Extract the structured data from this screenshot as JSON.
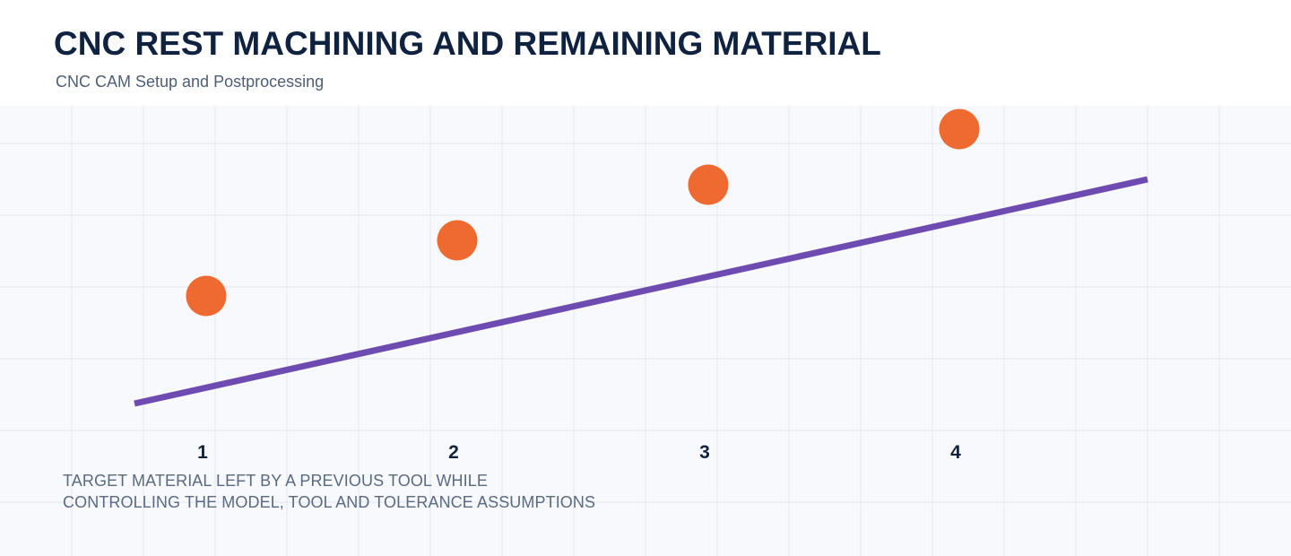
{
  "header": {
    "title": "CNC REST MACHINING AND REMAINING MATERIAL",
    "subtitle": "CNC CAM Setup and Postprocessing"
  },
  "diagram": {
    "steps": [
      {
        "label": "1"
      },
      {
        "label": "2"
      },
      {
        "label": "3"
      },
      {
        "label": "4"
      }
    ],
    "caption_lines": [
      "TARGET MATERIAL LEFT BY A PREVIOUS TOOL WHILE",
      "CONTROLLING THE MODEL, TOOL AND TOLERANCE ASSUMPTIONS"
    ]
  },
  "colors": {
    "background": "#ffffff",
    "panel": "#f7f9fc",
    "grid": "#e3e7ef",
    "title": "#0f2240",
    "subtitle": "#4d5e76",
    "caption": "#5a6a82",
    "marker": "#ef6a30",
    "trend_line": "#6e4bb0"
  }
}
